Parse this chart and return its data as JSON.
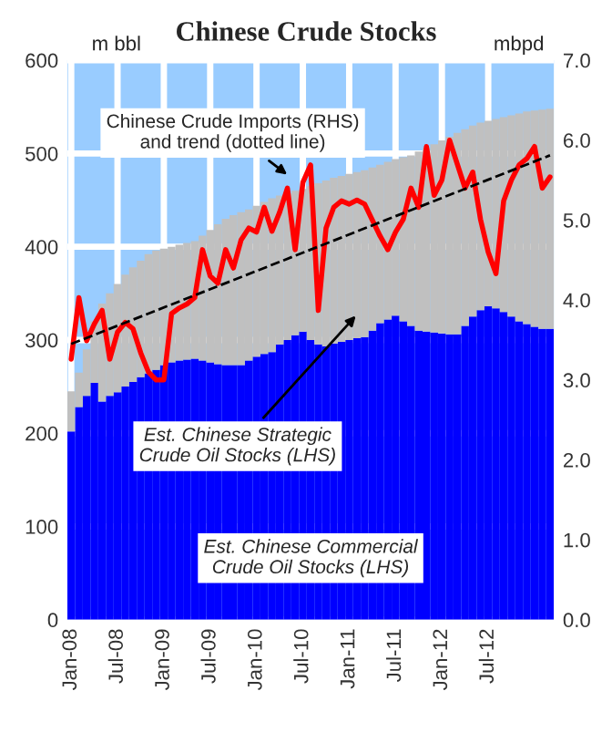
{
  "chart_data": {
    "type": "bar",
    "title": "Chinese Crude Stocks",
    "ylabel": "m bbl",
    "y2label": "mbpd",
    "categories": [
      "Jan-08",
      null,
      null,
      null,
      null,
      null,
      "Jul-08",
      null,
      null,
      null,
      null,
      null,
      "Jan-09",
      null,
      null,
      null,
      null,
      null,
      "Jul-09",
      null,
      null,
      null,
      null,
      null,
      "Jan-10",
      null,
      null,
      null,
      null,
      null,
      "Jul-10",
      null,
      null,
      null,
      null,
      null,
      "Jan-11",
      null,
      null,
      null,
      null,
      null,
      "Jul-11",
      null,
      null,
      null,
      null,
      null,
      "Jan-12",
      null,
      null,
      null,
      null,
      null,
      "Jul-12",
      null,
      null,
      null,
      null,
      null,
      null,
      null,
      null
    ],
    "stacked": true,
    "grid": true,
    "ylim": [
      0,
      600
    ],
    "yticks": [
      0,
      100,
      200,
      300,
      400,
      500,
      600
    ],
    "y2lim": [
      0,
      7
    ],
    "y2ticks": [
      {
        "value": 0,
        "label": "0.0"
      },
      {
        "value": 1,
        "label": "1.0"
      },
      {
        "value": 2,
        "label": "2.0"
      },
      {
        "value": 3,
        "label": "3.0"
      },
      {
        "value": 4,
        "label": "4.0"
      },
      {
        "value": 5,
        "label": "5.0"
      },
      {
        "value": 6,
        "label": "6.0"
      },
      {
        "value": 7,
        "label": "7.0"
      }
    ],
    "series": [
      {
        "name": "Est. Chinese Commercial\nCrude Oil Stocks (LHS)",
        "color": "#0000ff",
        "values": [
          202,
          228,
          240,
          254,
          234,
          240,
          244,
          250,
          255,
          260,
          264,
          268,
          273,
          276,
          278,
          279,
          280,
          278,
          276,
          274,
          273,
          273,
          273,
          278,
          282,
          285,
          287,
          295,
          300,
          305,
          309,
          300,
          295,
          293,
          296,
          298,
          300,
          302,
          303,
          310,
          318,
          322,
          326,
          320,
          315,
          310,
          309,
          308,
          307,
          306,
          306,
          315,
          325,
          332,
          336,
          334,
          330,
          325,
          320,
          317,
          314,
          312,
          312
        ]
      },
      {
        "name": "Est. Chinese Strategic\nCrude Oil Stocks (LHS)",
        "color": "#c0c0c0",
        "values": [
          43,
          37,
          50,
          66,
          105,
          110,
          116,
          120,
          123,
          125,
          128,
          128,
          125,
          124,
          124,
          125,
          126,
          134,
          142,
          150,
          157,
          161,
          164,
          162,
          162,
          163,
          165,
          160,
          157,
          155,
          153,
          165,
          173,
          178,
          178,
          178,
          178,
          178,
          179,
          175,
          170,
          169,
          168,
          176,
          183,
          192,
          197,
          202,
          207,
          212,
          216,
          211,
          205,
          201,
          199,
          203,
          209,
          216,
          223,
          228,
          232,
          235,
          236
        ]
      },
      {
        "type": "line",
        "axis": "y2",
        "color": "#ff0000",
        "line_style": "solid",
        "values": [
          3.26,
          4.03,
          3.49,
          3.7,
          3.87,
          3.26,
          3.6,
          3.72,
          3.64,
          3.34,
          3.1,
          3.0,
          3.0,
          3.83,
          3.9,
          3.95,
          4.03,
          4.63,
          4.3,
          4.21,
          4.63,
          4.4,
          4.75,
          4.9,
          4.85,
          5.16,
          4.86,
          5.1,
          5.4,
          4.63,
          5.47,
          5.69,
          3.87,
          4.9,
          5.16,
          5.24,
          5.2,
          5.25,
          5.2,
          5.0,
          4.8,
          4.63,
          4.85,
          5.01,
          5.4,
          5.16,
          5.92,
          5.31,
          5.5,
          6.0,
          5.7,
          5.4,
          5.6,
          5.01,
          4.6,
          4.33,
          5.24,
          5.5,
          5.69,
          5.77,
          5.92,
          5.4,
          5.54
        ]
      },
      {
        "type": "line",
        "axis": "y2",
        "color": "#000000",
        "line_style": "dashed",
        "values": [
          3.45,
          null,
          null,
          null,
          null,
          null,
          null,
          null,
          null,
          null,
          null,
          null,
          null,
          null,
          null,
          null,
          null,
          null,
          null,
          null,
          null,
          null,
          null,
          null,
          null,
          null,
          null,
          null,
          null,
          null,
          null,
          null,
          null,
          null,
          null,
          null,
          null,
          null,
          null,
          null,
          null,
          null,
          null,
          null,
          null,
          null,
          null,
          null,
          null,
          null,
          null,
          null,
          null,
          null,
          null,
          null,
          null,
          null,
          null,
          null,
          null,
          null,
          5.81
        ]
      }
    ],
    "annotations": [
      "Chinese Crude Imports (RHS)\nand trend (dotted line)"
    ]
  }
}
